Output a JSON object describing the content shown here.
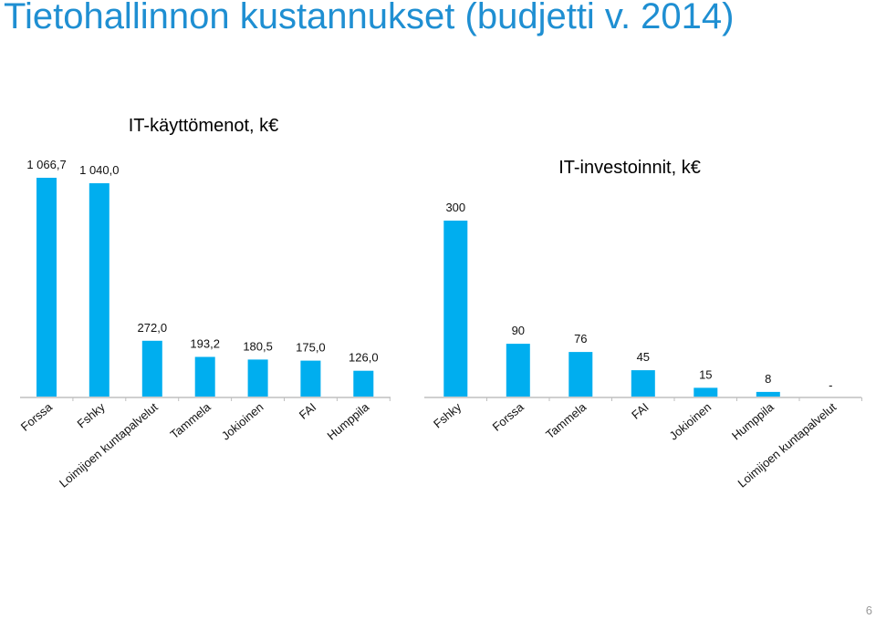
{
  "slide": {
    "title": "Tietohallinnon kustannukset (budjetti v. 2014)",
    "page_number": "6"
  },
  "colors": {
    "bar": "#00aeef",
    "title": "#1f8fd2",
    "axis": "#bfbfbf",
    "text": "#111111",
    "page_number": "#9a9a9a"
  },
  "chart_data": [
    {
      "type": "bar",
      "title": "IT-käyttömenot, k€",
      "categories": [
        "Forssa",
        "Fshky",
        "Loimijoen kuntapalvelut",
        "Tammela",
        "Jokioinen",
        "FAI",
        "Humppila"
      ],
      "values": [
        1066.7,
        1040.0,
        272.0,
        193.2,
        180.5,
        175.0,
        126.0
      ],
      "value_labels": [
        "1 066,7",
        "1 040,0",
        "272,0",
        "193,2",
        "180,5",
        "175,0",
        "126,0"
      ],
      "legend": false,
      "grid": false
    },
    {
      "type": "bar",
      "title": "IT-investoinnit, k€",
      "categories": [
        "Fshky",
        "Forssa",
        "Tammela",
        "FAI",
        "Jokioinen",
        "Humppila",
        "Loimijoen kuntapalvelut"
      ],
      "values": [
        300,
        90,
        76,
        45,
        15,
        8,
        0
      ],
      "value_labels": [
        "300",
        "90",
        "76",
        "45",
        "15",
        "8",
        "-"
      ],
      "legend": false,
      "grid": false
    }
  ]
}
